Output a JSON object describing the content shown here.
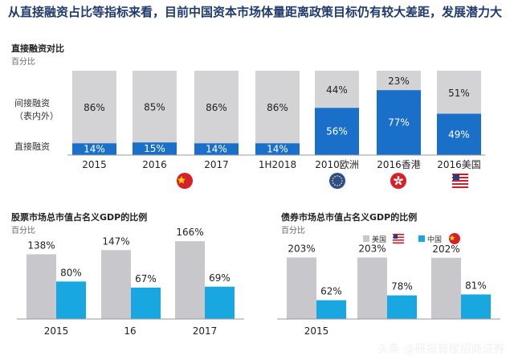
{
  "headline": "从直接融资占比等指标来看，目前中国资本市场体量距离政策目标仍有较大差距，发展潜力大",
  "watermark": "头条 @研报智搜招商证券",
  "colors": {
    "gray": "#cfcfd3",
    "blue": "#1a70c8",
    "bright_blue": "#18a7e0",
    "flag_red": "#d8202a",
    "flag_yellow": "#ffd900",
    "eu_blue": "#2a4d9a"
  },
  "chart_data": [
    {
      "type": "bar",
      "stacked": true,
      "title": "直接融资对比",
      "unit": "百分比",
      "categories": [
        "2015",
        "2016",
        "2017",
        "1H2018",
        "2010欧洲",
        "2016香港",
        "2016美国"
      ],
      "row_labels": [
        "间接融资",
        "（表内外）",
        "直接融资"
      ],
      "series": [
        {
          "name": "直接融资",
          "values": [
            14,
            15,
            14,
            14,
            56,
            77,
            49
          ]
        },
        {
          "name": "间接融资",
          "values": [
            86,
            85,
            86,
            86,
            44,
            23,
            51
          ]
        }
      ],
      "flags": [
        "china-flag-icon",
        "eu-flag-icon",
        "hongkong-flag-icon",
        "us-flag-icon"
      ]
    },
    {
      "type": "bar",
      "title": "股票市场总市值占名义GDP的比例",
      "unit": "百分比",
      "categories": [
        "2015",
        "16",
        "2017"
      ],
      "series": [
        {
          "name": "美国",
          "values": [
            138,
            147,
            166
          ]
        },
        {
          "name": "中国",
          "values": [
            80,
            67,
            69
          ]
        }
      ],
      "ylim": [
        0,
        180
      ]
    },
    {
      "type": "bar",
      "title": "债券市场总市值占名义GDP的比例",
      "unit": "百分比",
      "categories": [
        "2015",
        "",
        ""
      ],
      "series": [
        {
          "name": "美国",
          "values": [
            203,
            203,
            202
          ]
        },
        {
          "name": "中国",
          "values": [
            62,
            78,
            81
          ]
        }
      ],
      "legend": [
        "美国",
        "中国"
      ],
      "legend_position": "top-right",
      "ylim": [
        0,
        220
      ]
    }
  ]
}
